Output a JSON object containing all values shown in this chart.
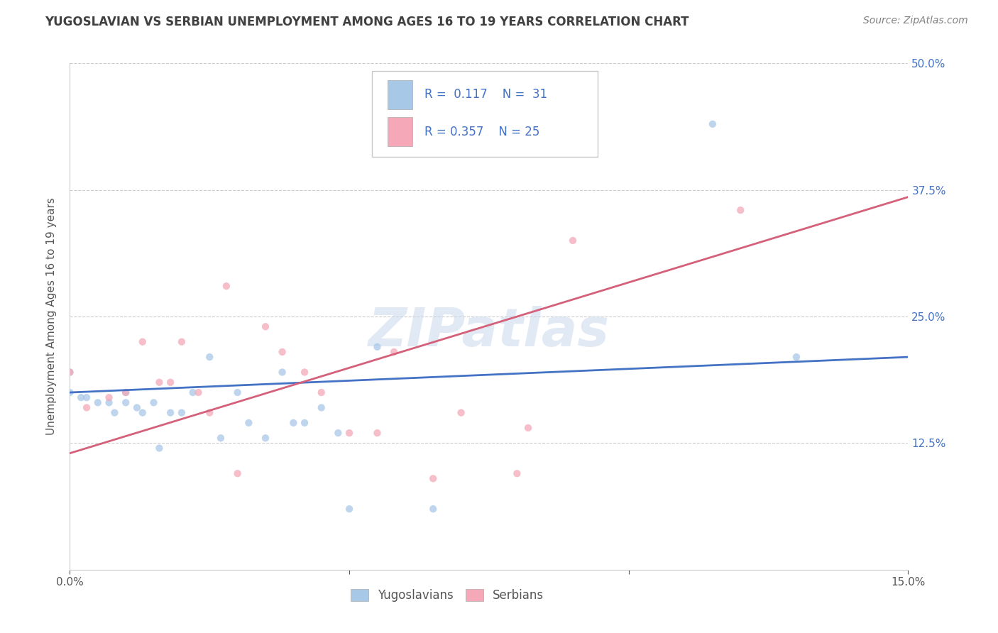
{
  "title": "YUGOSLAVIAN VS SERBIAN UNEMPLOYMENT AMONG AGES 16 TO 19 YEARS CORRELATION CHART",
  "source": "Source: ZipAtlas.com",
  "ylabel": "Unemployment Among Ages 16 to 19 years",
  "xlim": [
    0.0,
    0.15
  ],
  "ylim": [
    0.0,
    0.5
  ],
  "legend_label1": "Yugoslavians",
  "legend_label2": "Serbians",
  "R1": 0.117,
  "N1": 31,
  "R2": 0.357,
  "N2": 25,
  "color1": "#a8c8e8",
  "color2": "#f4a8b8",
  "line_color1": "#4472c4",
  "line_color2": "#d4607a",
  "watermark": "ZIPatlas",
  "background_color": "#ffffff",
  "grid_color": "#cccccc",
  "title_color": "#404040",
  "source_color": "#808080",
  "scatter1_x": [
    0.0,
    0.0,
    0.002,
    0.003,
    0.005,
    0.007,
    0.008,
    0.01,
    0.01,
    0.012,
    0.013,
    0.015,
    0.016,
    0.018,
    0.02,
    0.022,
    0.025,
    0.027,
    0.03,
    0.032,
    0.035,
    0.038,
    0.04,
    0.042,
    0.045,
    0.048,
    0.05,
    0.055,
    0.065,
    0.115,
    0.13
  ],
  "scatter1_y": [
    0.195,
    0.175,
    0.17,
    0.17,
    0.165,
    0.165,
    0.155,
    0.175,
    0.165,
    0.16,
    0.155,
    0.165,
    0.12,
    0.155,
    0.155,
    0.175,
    0.21,
    0.13,
    0.175,
    0.145,
    0.13,
    0.195,
    0.145,
    0.145,
    0.16,
    0.135,
    0.06,
    0.22,
    0.06,
    0.44,
    0.21
  ],
  "scatter2_x": [
    0.0,
    0.003,
    0.007,
    0.01,
    0.013,
    0.016,
    0.018,
    0.02,
    0.023,
    0.025,
    0.028,
    0.03,
    0.035,
    0.038,
    0.042,
    0.045,
    0.05,
    0.055,
    0.058,
    0.065,
    0.07,
    0.08,
    0.082,
    0.09,
    0.12
  ],
  "scatter2_y": [
    0.195,
    0.16,
    0.17,
    0.175,
    0.225,
    0.185,
    0.185,
    0.225,
    0.175,
    0.155,
    0.28,
    0.095,
    0.24,
    0.215,
    0.195,
    0.175,
    0.135,
    0.135,
    0.215,
    0.09,
    0.155,
    0.095,
    0.14,
    0.325,
    0.355
  ],
  "trendline1_x0": 0.0,
  "trendline1_y0": 0.175,
  "trendline1_x1": 0.15,
  "trendline1_y1": 0.21,
  "trendline2_x0": 0.0,
  "trendline2_y0": 0.115,
  "trendline2_x1": 0.15,
  "trendline2_y1": 0.368
}
